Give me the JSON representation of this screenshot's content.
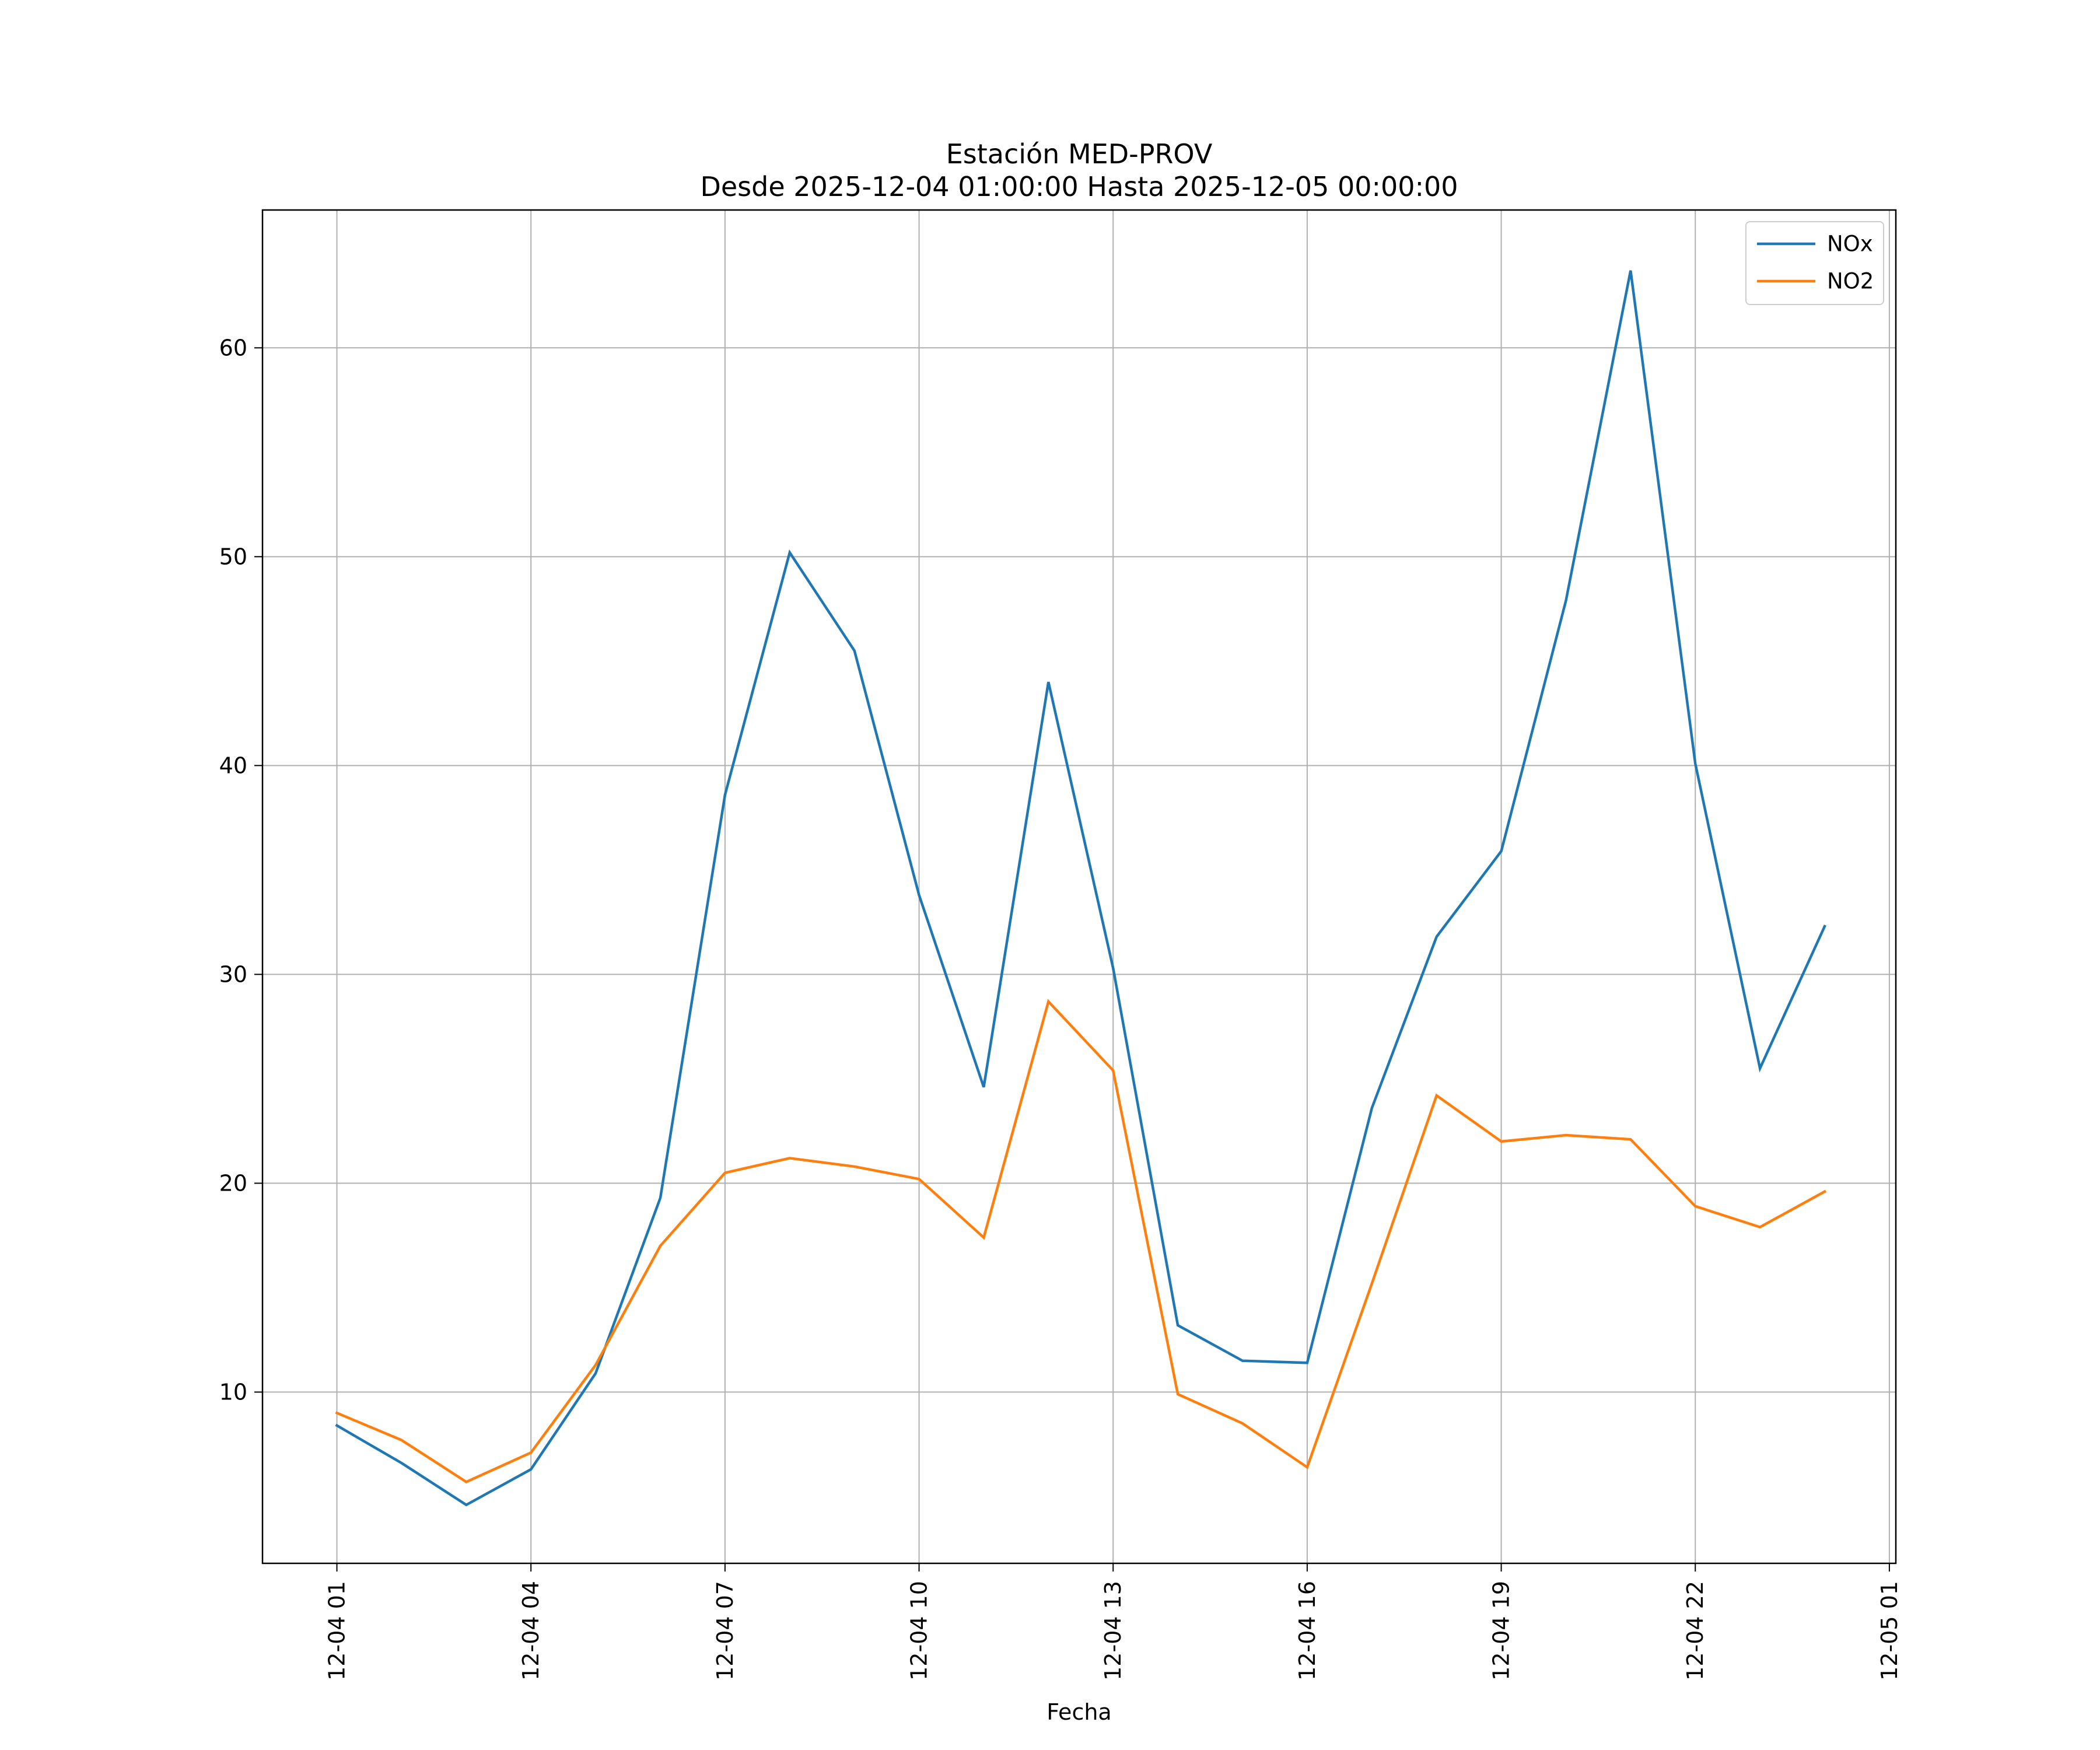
{
  "chart_data": {
    "type": "line",
    "title": "Estación MED-PROV",
    "subtitle": "Desde 2025-12-04 01:00:00 Hasta 2025-12-05 00:00:00",
    "xlabel": "Fecha",
    "ylabel": "",
    "x": [
      1,
      2,
      3,
      4,
      5,
      6,
      7,
      8,
      9,
      10,
      11,
      12,
      13,
      14,
      15,
      16,
      17,
      18,
      19,
      20,
      21,
      22,
      23,
      24
    ],
    "xlim": [
      -0.15,
      25.1
    ],
    "ylim": [
      1.8,
      66.6
    ],
    "x_ticks": [
      {
        "value": 1,
        "label": "12-04 01"
      },
      {
        "value": 4,
        "label": "12-04 04"
      },
      {
        "value": 7,
        "label": "12-04 07"
      },
      {
        "value": 10,
        "label": "12-04 10"
      },
      {
        "value": 13,
        "label": "12-04 13"
      },
      {
        "value": 16,
        "label": "12-04 16"
      },
      {
        "value": 19,
        "label": "12-04 19"
      },
      {
        "value": 22,
        "label": "12-04 22"
      },
      {
        "value": 25,
        "label": "12-05 01"
      }
    ],
    "y_ticks": [
      {
        "value": 10,
        "label": "10"
      },
      {
        "value": 20,
        "label": "20"
      },
      {
        "value": 30,
        "label": "30"
      },
      {
        "value": 40,
        "label": "40"
      },
      {
        "value": 50,
        "label": "50"
      },
      {
        "value": 60,
        "label": "60"
      }
    ],
    "grid": true,
    "legend_position": "top-right",
    "series": [
      {
        "name": "NOx",
        "color": "#1f77b4",
        "values": [
          8.4,
          6.6,
          4.6,
          6.3,
          10.9,
          19.3,
          38.6,
          50.2,
          45.5,
          33.8,
          24.6,
          44.0,
          30.3,
          13.2,
          11.5,
          11.4,
          23.6,
          31.8,
          35.9,
          47.9,
          63.7,
          40.1,
          25.5,
          32.3
        ]
      },
      {
        "name": "NO2",
        "color": "#ff7f0e",
        "values": [
          9.0,
          7.7,
          5.7,
          7.1,
          11.3,
          17.0,
          20.5,
          21.2,
          20.8,
          20.2,
          17.4,
          28.7,
          25.4,
          9.9,
          8.5,
          6.4,
          15.2,
          24.2,
          22.0,
          22.3,
          22.1,
          18.9,
          17.9,
          19.6
        ]
      }
    ]
  }
}
